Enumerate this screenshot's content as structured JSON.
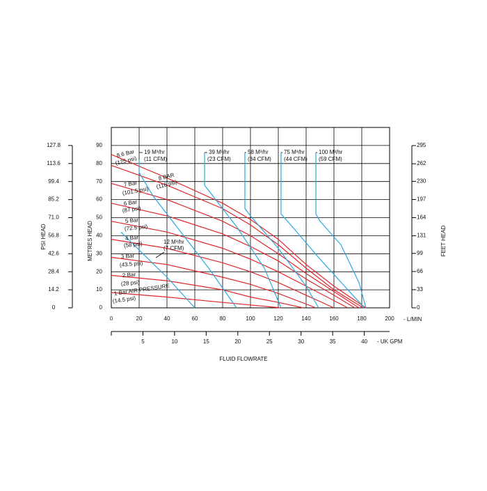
{
  "chart_data": {
    "type": "line",
    "x_label": "FLUID FLOWRATE",
    "x_unit": "- L/MIN",
    "xlim": [
      0,
      200
    ],
    "xticks": [
      0,
      20,
      40,
      60,
      80,
      100,
      120,
      140,
      160,
      180,
      200
    ],
    "x2_unit": "- UK GPM",
    "x2lim": [
      0,
      44
    ],
    "x2ticks": [
      5,
      10,
      15,
      20,
      25,
      30,
      35,
      40
    ],
    "y_label": "METRES HEAD",
    "ylim": [
      0,
      100
    ],
    "yticks": [
      0,
      10,
      20,
      30,
      40,
      50,
      60,
      70,
      80,
      90
    ],
    "y3_label": "PSI HEAD",
    "y3lim": [
      0,
      142
    ],
    "y3ticks": [
      0,
      14.2,
      28.4,
      42.6,
      56.8,
      {
        "value": 71,
        "label": "71.0"
      },
      85.2,
      99.4,
      113.6,
      127.8
    ],
    "y2_label": "FEET HEAD",
    "y2lim": [
      0,
      328
    ],
    "y2ticks": [
      0,
      33,
      66,
      99,
      131,
      164,
      197,
      230,
      262,
      295
    ],
    "grid": true,
    "series": [
      {
        "name": "8.6 Bar",
        "sublabel": "(125 psi)",
        "color": "#e0262b",
        "x": [
          0,
          40,
          80,
          100,
          120,
          140,
          160,
          183
        ],
        "values": [
          85,
          72,
          58,
          49,
          38,
          24,
          12,
          0
        ]
      },
      {
        "name": "8 BAR",
        "sublabel": "(116 psi)",
        "color": "#e0262b",
        "x": [
          0,
          40,
          80,
          100,
          120,
          140,
          160,
          181
        ],
        "values": [
          79,
          68,
          55,
          46,
          35,
          22,
          10,
          0
        ]
      },
      {
        "name": "7 Bar",
        "sublabel": "(101.5 psi)",
        "color": "#e0262b",
        "x": [
          0,
          40,
          80,
          100,
          120,
          140,
          160,
          178
        ],
        "values": [
          69,
          60,
          48,
          40,
          30,
          19,
          9,
          0
        ]
      },
      {
        "name": "6 Bar",
        "sublabel": "(87 psi)",
        "color": "#e0262b",
        "x": [
          0,
          40,
          80,
          100,
          120,
          140,
          160,
          175
        ],
        "values": [
          58,
          51,
          41,
          34,
          26,
          16,
          7,
          0
        ]
      },
      {
        "name": "5 Bar",
        "sublabel": "(72.5 psi)",
        "color": "#e0262b",
        "x": [
          0,
          40,
          80,
          100,
          120,
          140,
          170
        ],
        "values": [
          48,
          42,
          33,
          27,
          20,
          12,
          0
        ]
      },
      {
        "name": "4 Bar",
        "sublabel": "(58 psi)",
        "color": "#e0262b",
        "x": [
          0,
          40,
          80,
          100,
          120,
          140,
          160
        ],
        "values": [
          38,
          33,
          25,
          20,
          14,
          7,
          0
        ]
      },
      {
        "name": "3 Bar",
        "sublabel": "(43.5 psi)",
        "color": "#e0262b",
        "x": [
          0,
          40,
          80,
          100,
          120,
          147
        ],
        "values": [
          28,
          24,
          17,
          13,
          8,
          0
        ]
      },
      {
        "name": "2 Bar",
        "sublabel": "(28 psi)",
        "color": "#e0262b",
        "x": [
          0,
          40,
          80,
          100,
          120,
          138
        ],
        "values": [
          18,
          15,
          10,
          6,
          3,
          0
        ]
      },
      {
        "name": "1 Bar AIR PRESSURE",
        "sublabel": "(14.5 psi)",
        "color": "#e0262b",
        "x": [
          0,
          40,
          80,
          122
        ],
        "values": [
          8.5,
          6,
          3,
          0
        ]
      },
      {
        "name": "12 M³/hr",
        "sublabel": "(7 CFM)",
        "color": "#29a8e0",
        "x": [
          7,
          20,
          40,
          60
        ],
        "values": [
          42,
          32,
          17,
          0
        ]
      },
      {
        "name": "19 M³/hr",
        "sublabel": "(11 CFM)",
        "color": "#29a8e0",
        "x": [
          20,
          20,
          30,
          50,
          70,
          90
        ],
        "values": [
          82,
          75,
          62,
          42,
          22,
          0
        ]
      },
      {
        "name": "39 M³/hr",
        "sublabel": "(23 CFM)",
        "color": "#29a8e0",
        "x": [
          67,
          67,
          70,
          90,
          110,
          122
        ],
        "values": [
          86,
          68,
          65,
          45,
          22,
          0
        ]
      },
      {
        "name": "58 M³/hr",
        "sublabel": "(34 CFM)",
        "color": "#29a8e0",
        "x": [
          96,
          96,
          100,
          120,
          140,
          149
        ],
        "values": [
          86,
          55,
          51,
          33,
          12,
          0
        ]
      },
      {
        "name": "75 M³/hr",
        "sublabel": "(44 CFM)",
        "color": "#29a8e0",
        "x": [
          122,
          122,
          130,
          150,
          170,
          182
        ],
        "values": [
          86,
          52,
          45,
          27,
          10,
          0
        ]
      },
      {
        "name": "100 M³/hr",
        "sublabel": "(59 CFM)",
        "color": "#29a8e0",
        "x": [
          147,
          147,
          150,
          165,
          178,
          183
        ],
        "values": [
          86,
          52,
          48,
          35,
          14,
          0
        ]
      }
    ]
  }
}
